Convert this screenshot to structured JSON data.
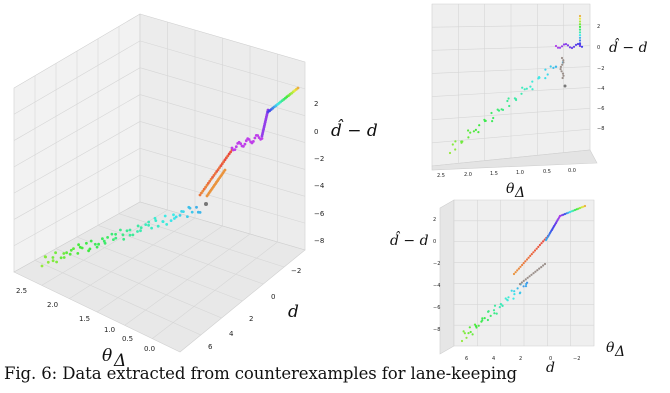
{
  "figure": {
    "axis_labels": {
      "theta": "θ",
      "theta_sub": "Δ",
      "d": "d",
      "dhat_minus_d": "d̂ − d"
    },
    "caption_label": "Fig. 6:",
    "caption_text": "Data extracted from counterexamples for lane-keeping"
  },
  "chart_data": [
    {
      "type": "scatter",
      "view": "3d-perspective",
      "xlabel": "θΔ",
      "ylabel": "d",
      "zlabel": "d̂ − d",
      "x_ticks": [
        "2.5",
        "2.0",
        "1.5",
        "1.0",
        "0.5",
        "0.0"
      ],
      "y_ticks": [
        "−2",
        "0",
        "2",
        "4",
        "6"
      ],
      "z_ticks": [
        "2",
        "0",
        "−2",
        "−4",
        "−6",
        "−8"
      ],
      "grid": true
    },
    {
      "type": "scatter",
      "view": "3d-top",
      "xlabel": "θΔ",
      "zlabel": "d̂ − d",
      "x_ticks": [
        "2.5",
        "2.0",
        "1.5",
        "1.0",
        "0.5",
        "0.0"
      ],
      "z_ticks": [
        "2",
        "0",
        "−2",
        "−4",
        "−6",
        "−8"
      ],
      "grid": true
    },
    {
      "type": "scatter",
      "view": "3d-side",
      "xlabel": "d",
      "ylabel": "θΔ",
      "zlabel": "d̂ − d",
      "x_ticks": [
        "6",
        "4",
        "2",
        "0",
        "−2"
      ],
      "z_ticks": [
        "2",
        "0",
        "−2",
        "−4",
        "−6",
        "−8"
      ],
      "grid": true
    }
  ]
}
